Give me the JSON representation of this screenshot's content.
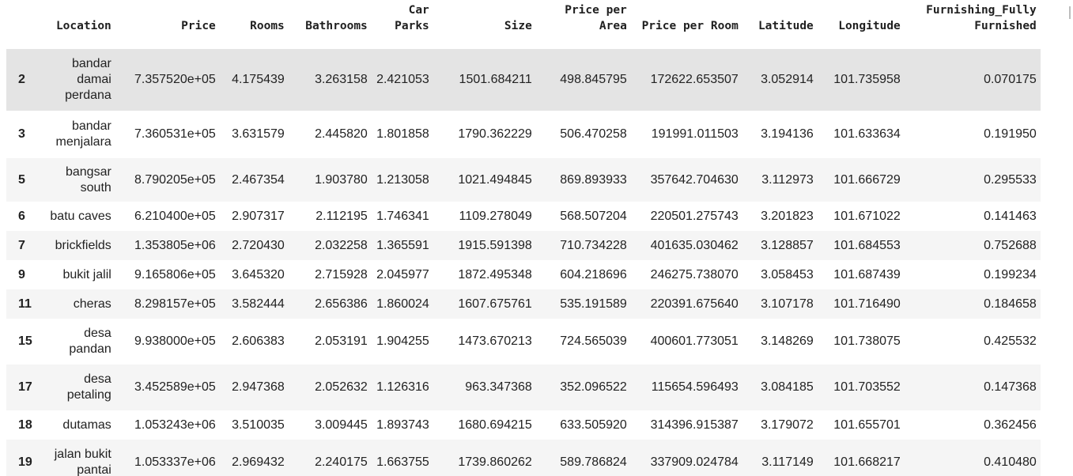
{
  "columns": [
    "",
    "Location",
    "Price",
    "Rooms",
    "Bathrooms",
    "Car Parks",
    "Size",
    "Price per Area",
    "Price per Room",
    "Latitude",
    "Longitude",
    "Furnishing_Fully Furnished"
  ],
  "rows": [
    {
      "index": "2",
      "location": "bandar damai perdana",
      "price": "7.357520e+05",
      "rooms": "4.175439",
      "bathrooms": "3.263158",
      "car_parks": "2.421053",
      "size": "1501.684211",
      "price_per_area": "498.845795",
      "price_per_room": "172622.653507",
      "latitude": "3.052914",
      "longitude": "101.735958",
      "furnishing": "0.070175"
    },
    {
      "index": "3",
      "location": "bandar menjalara",
      "price": "7.360531e+05",
      "rooms": "3.631579",
      "bathrooms": "2.445820",
      "car_parks": "1.801858",
      "size": "1790.362229",
      "price_per_area": "506.470258",
      "price_per_room": "191991.011503",
      "latitude": "3.194136",
      "longitude": "101.633634",
      "furnishing": "0.191950"
    },
    {
      "index": "5",
      "location": "bangsar south",
      "price": "8.790205e+05",
      "rooms": "2.467354",
      "bathrooms": "1.903780",
      "car_parks": "1.213058",
      "size": "1021.494845",
      "price_per_area": "869.893933",
      "price_per_room": "357642.704630",
      "latitude": "3.112973",
      "longitude": "101.666729",
      "furnishing": "0.295533"
    },
    {
      "index": "6",
      "location": "batu caves",
      "price": "6.210400e+05",
      "rooms": "2.907317",
      "bathrooms": "2.112195",
      "car_parks": "1.746341",
      "size": "1109.278049",
      "price_per_area": "568.507204",
      "price_per_room": "220501.275743",
      "latitude": "3.201823",
      "longitude": "101.671022",
      "furnishing": "0.141463"
    },
    {
      "index": "7",
      "location": "brickfields",
      "price": "1.353805e+06",
      "rooms": "2.720430",
      "bathrooms": "2.032258",
      "car_parks": "1.365591",
      "size": "1915.591398",
      "price_per_area": "710.734228",
      "price_per_room": "401635.030462",
      "latitude": "3.128857",
      "longitude": "101.684553",
      "furnishing": "0.752688"
    },
    {
      "index": "9",
      "location": "bukit jalil",
      "price": "9.165806e+05",
      "rooms": "3.645320",
      "bathrooms": "2.715928",
      "car_parks": "2.045977",
      "size": "1872.495348",
      "price_per_area": "604.218696",
      "price_per_room": "246275.738070",
      "latitude": "3.058453",
      "longitude": "101.687439",
      "furnishing": "0.199234"
    },
    {
      "index": "11",
      "location": "cheras",
      "price": "8.298157e+05",
      "rooms": "3.582444",
      "bathrooms": "2.656386",
      "car_parks": "1.860024",
      "size": "1607.675761",
      "price_per_area": "535.191589",
      "price_per_room": "220391.675640",
      "latitude": "3.107178",
      "longitude": "101.716490",
      "furnishing": "0.184658"
    },
    {
      "index": "15",
      "location": "desa pandan",
      "price": "9.938000e+05",
      "rooms": "2.606383",
      "bathrooms": "2.053191",
      "car_parks": "1.904255",
      "size": "1473.670213",
      "price_per_area": "724.565039",
      "price_per_room": "400601.773051",
      "latitude": "3.148269",
      "longitude": "101.738075",
      "furnishing": "0.425532"
    },
    {
      "index": "17",
      "location": "desa petaling",
      "price": "3.452589e+05",
      "rooms": "2.947368",
      "bathrooms": "2.052632",
      "car_parks": "1.126316",
      "size": "963.347368",
      "price_per_area": "352.096522",
      "price_per_room": "115654.596493",
      "latitude": "3.084185",
      "longitude": "101.703552",
      "furnishing": "0.147368"
    },
    {
      "index": "18",
      "location": "dutamas",
      "price": "1.053243e+06",
      "rooms": "3.510035",
      "bathrooms": "3.009445",
      "car_parks": "1.893743",
      "size": "1680.694215",
      "price_per_area": "633.505920",
      "price_per_room": "314396.915387",
      "latitude": "3.179072",
      "longitude": "101.655701",
      "furnishing": "0.362456"
    },
    {
      "index": "19",
      "location": "jalan bukit pantai",
      "price": "1.053337e+06",
      "rooms": "2.969432",
      "bathrooms": "2.240175",
      "car_parks": "1.663755",
      "size": "1739.860262",
      "price_per_area": "589.786824",
      "price_per_room": "337909.024784",
      "latitude": "3.117149",
      "longitude": "101.668217",
      "furnishing": "0.410480"
    }
  ]
}
